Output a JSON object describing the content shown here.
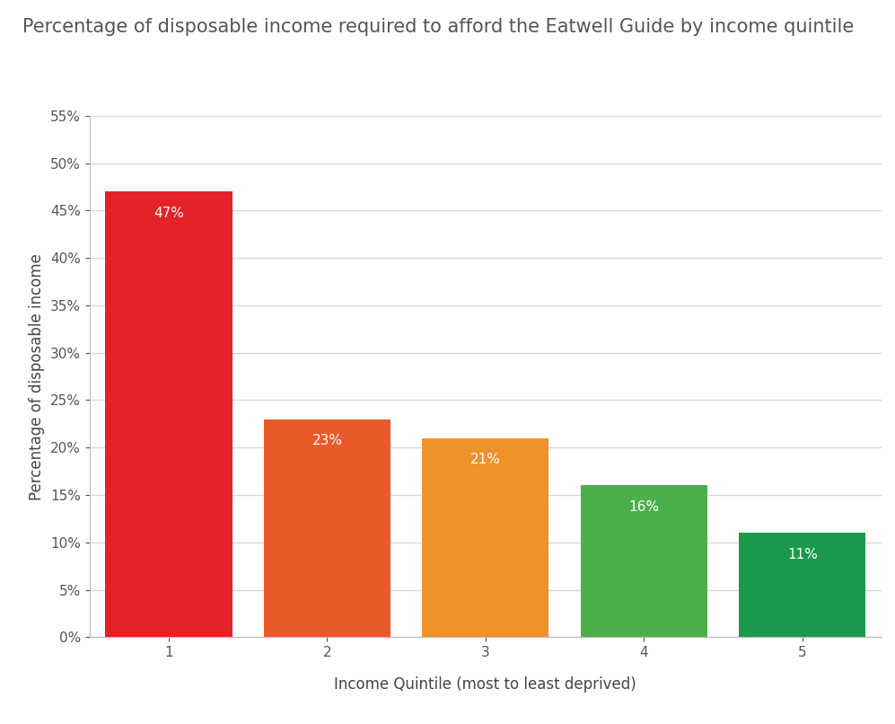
{
  "chart_data": {
    "type": "bar",
    "title": "Percentage of disposable income required to afford the Eatwell Guide by income quintile",
    "x_label": "Income Quintile (most to least deprived)",
    "y_label": "Percentage of disposable income",
    "categories": [
      "1",
      "2",
      "3",
      "4",
      "5"
    ],
    "values": [
      47,
      23,
      21,
      16,
      11
    ],
    "value_labels": [
      "47%",
      "23%",
      "21%",
      "16%",
      "11%"
    ],
    "data_labels": true,
    "colors": [
      "#e32228",
      "#e95a2a",
      "#f0922a",
      "#4bb04b",
      "#1a9a4a"
    ],
    "ylim": [
      0,
      55
    ],
    "yticks": [
      {
        "value": 0,
        "label": "0%"
      },
      {
        "value": 5,
        "label": "5%"
      },
      {
        "value": 10,
        "label": "10%"
      },
      {
        "value": 15,
        "label": "15%"
      },
      {
        "value": 20,
        "label": "20%"
      },
      {
        "value": 25,
        "label": "25%"
      },
      {
        "value": 30,
        "label": "30%"
      },
      {
        "value": 35,
        "label": "35%"
      },
      {
        "value": 40,
        "label": "40%"
      },
      {
        "value": 45,
        "label": "45%"
      },
      {
        "value": 50,
        "label": "50%"
      },
      {
        "value": 55,
        "label": "55%"
      }
    ],
    "grid": true
  }
}
